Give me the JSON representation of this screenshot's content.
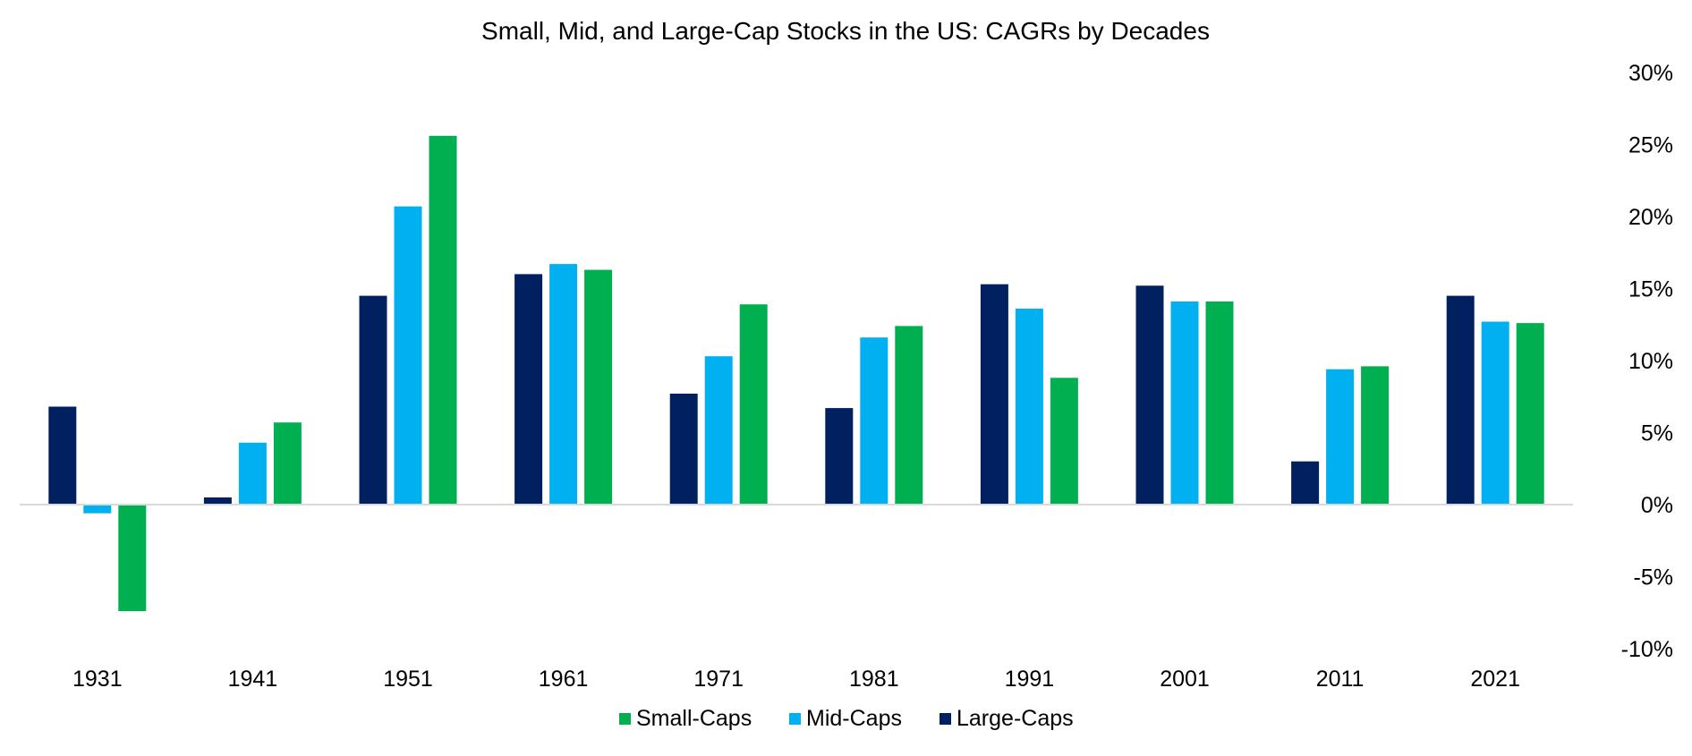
{
  "chart_data": {
    "type": "bar",
    "title": "Small, Mid, and Large-Cap Stocks in the US: CAGRs by Decades",
    "xlabel": "",
    "ylabel": "",
    "categories": [
      "1931",
      "1941",
      "1951",
      "1961",
      "1971",
      "1981",
      "1991",
      "2001",
      "2011",
      "2021"
    ],
    "series": [
      {
        "name": "Large-Caps",
        "color": "#002060",
        "values": [
          6.8,
          0.5,
          14.5,
          16.0,
          7.7,
          6.7,
          15.3,
          15.2,
          3.0,
          14.5
        ]
      },
      {
        "name": "Mid-Caps",
        "color": "#00B0F0",
        "values": [
          -0.6,
          4.3,
          20.7,
          16.7,
          10.3,
          11.6,
          13.6,
          14.1,
          9.4,
          12.7
        ]
      },
      {
        "name": "Small-Caps",
        "color": "#00B050",
        "values": [
          -7.4,
          5.7,
          25.6,
          16.3,
          13.9,
          12.4,
          8.8,
          14.1,
          9.6,
          12.6
        ]
      }
    ],
    "ylim": [
      -10,
      30
    ],
    "yticks": [
      30,
      25,
      20,
      15,
      10,
      5,
      0,
      -5,
      -10
    ],
    "ytick_labels": [
      "30%",
      "25%",
      "20%",
      "15%",
      "10%",
      "5%",
      "0%",
      "-5%",
      "-10%"
    ],
    "axis_position": "right",
    "grid": false,
    "legend_position": "bottom",
    "legend_order": [
      "Small-Caps",
      "Mid-Caps",
      "Large-Caps"
    ]
  }
}
